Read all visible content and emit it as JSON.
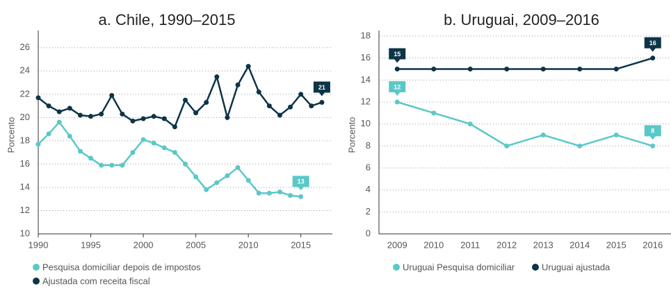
{
  "chart_data": [
    {
      "type": "line",
      "title": "a. Chile, 1990–2015",
      "y_label": "Porcento",
      "x": [
        1990,
        1991,
        1992,
        1993,
        1994,
        1995,
        1996,
        1997,
        1998,
        1999,
        2000,
        2001,
        2002,
        2003,
        2004,
        2005,
        2006,
        2007,
        2008,
        2009,
        2010,
        2011,
        2012,
        2013,
        2014,
        2015,
        2016,
        2017
      ],
      "xlim": [
        1990,
        2018
      ],
      "xticks": [
        1990,
        1995,
        2000,
        2005,
        2010,
        2015
      ],
      "ylim": [
        10,
        27
      ],
      "yticks": [
        10,
        12,
        14,
        16,
        18,
        20,
        22,
        24,
        26
      ],
      "grid": true,
      "series": [
        {
          "name": "Pesquisa domiciliar depois de impostos",
          "color": "#5bc8c8",
          "values": [
            17.7,
            18.6,
            19.6,
            18.4,
            17.1,
            16.5,
            15.9,
            15.9,
            15.9,
            17.0,
            18.1,
            17.8,
            17.4,
            17.0,
            16.0,
            14.9,
            13.8,
            14.4,
            15.0,
            15.7,
            14.6,
            13.5,
            13.5,
            13.6,
            13.3,
            13.2,
            null,
            null
          ],
          "value_labels": [
            null,
            null,
            null,
            null,
            null,
            null,
            null,
            null,
            null,
            null,
            null,
            null,
            null,
            null,
            null,
            null,
            null,
            null,
            null,
            null,
            null,
            null,
            null,
            null,
            null,
            "13",
            null,
            null
          ]
        },
        {
          "name": "Ajustada com receita fiscal",
          "color": "#0d3447",
          "values": [
            21.7,
            21.0,
            20.5,
            20.8,
            20.2,
            20.1,
            20.3,
            21.9,
            20.3,
            19.7,
            19.9,
            20.1,
            19.9,
            19.2,
            21.5,
            20.4,
            21.3,
            23.5,
            20.0,
            22.8,
            24.4,
            22.2,
            21.0,
            20.2,
            20.9,
            22.0,
            21.0,
            21.3
          ],
          "value_labels": [
            null,
            null,
            null,
            null,
            null,
            null,
            null,
            null,
            null,
            null,
            null,
            null,
            null,
            null,
            null,
            null,
            null,
            null,
            null,
            null,
            null,
            null,
            null,
            null,
            null,
            null,
            null,
            "21"
          ]
        }
      ]
    },
    {
      "type": "line",
      "title": "b. Uruguai, 2009–2016",
      "y_label": "Porcento",
      "categories": [
        "2009",
        "2010",
        "2011",
        "2012",
        "2013",
        "2014",
        "2015",
        "2016"
      ],
      "ylim": [
        0,
        18
      ],
      "yticks": [
        0,
        2,
        4,
        6,
        8,
        10,
        12,
        14,
        16,
        18
      ],
      "grid": true,
      "series": [
        {
          "name": "Uruguai Pesquisa domiciliar",
          "color": "#5bc8c8",
          "values": [
            12,
            11,
            10,
            8,
            9,
            8,
            9,
            8
          ],
          "value_labels": [
            "12",
            null,
            null,
            null,
            null,
            null,
            null,
            "8"
          ]
        },
        {
          "name": "Uruguai ajustada",
          "color": "#0d3447",
          "values": [
            15,
            15,
            15,
            15,
            15,
            15,
            15,
            16
          ],
          "value_labels": [
            "15",
            null,
            null,
            null,
            null,
            null,
            null,
            "16"
          ]
        }
      ]
    }
  ]
}
